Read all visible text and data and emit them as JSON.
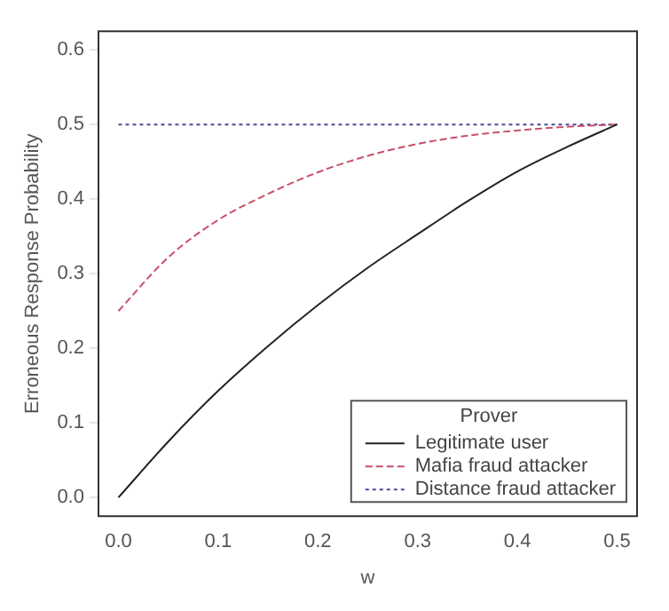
{
  "chart_data": {
    "type": "line",
    "xlabel": "w",
    "ylabel": "Erroneous Response Probability",
    "legend_title": "Prover",
    "xlim": [
      -0.02,
      0.52
    ],
    "xticks": [
      {
        "value": 0,
        "label": "0.0"
      },
      0.1,
      0.2,
      0.3,
      0.4,
      0.5
    ],
    "ylim": [
      -0.025,
      0.625
    ],
    "yticks": [
      {
        "value": 0,
        "label": "0.0"
      },
      0.1,
      0.2,
      0.3,
      0.4,
      0.5,
      0.6
    ],
    "grid": false,
    "legend": "bottom right",
    "marker": "none",
    "series": [
      {
        "name": "Legitimate user",
        "color": "#222222",
        "line_style": "solid",
        "x": [
          0,
          0.05,
          0.1,
          0.15,
          0.2,
          0.25,
          0.3,
          0.35,
          0.4,
          0.45,
          0.5
        ],
        "values": [
          0,
          0.075,
          0.143,
          0.203,
          0.258,
          0.308,
          0.353,
          0.397,
          0.437,
          0.47,
          0.5
        ]
      },
      {
        "name": "Mafia fraud attacker",
        "color": "#c8506a",
        "line_style": "dashed",
        "x": [
          0,
          0.05,
          0.1,
          0.15,
          0.2,
          0.25,
          0.3,
          0.35,
          0.4,
          0.45,
          0.5
        ],
        "values": [
          0.25,
          0.322,
          0.372,
          0.407,
          0.436,
          0.458,
          0.474,
          0.485,
          0.492,
          0.497,
          0.5
        ]
      },
      {
        "name": "Distance fraud attacker",
        "color": "#4a4a9a",
        "line_style": "dotted",
        "x": [
          0,
          0.5
        ],
        "values": [
          0.5,
          0.5
        ]
      }
    ]
  }
}
